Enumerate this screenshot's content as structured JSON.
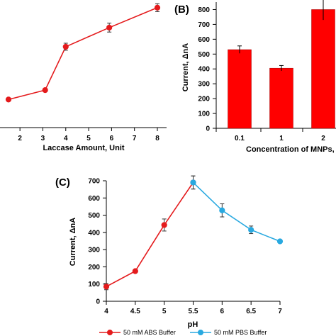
{
  "chart_data": [
    {
      "panel": "A",
      "panel_label": "",
      "type": "line",
      "xlabel": "Laccase Amount, Unit",
      "ylabel": "",
      "xlim": [
        1.5,
        8.3
      ],
      "ylim": [
        0,
        800
      ],
      "xticks": [
        2,
        3,
        4,
        5,
        6,
        7,
        8
      ],
      "color": "#e41a1c",
      "series": [
        {
          "x": [
            1.5,
            3.1,
            4.0,
            5.9,
            8.0
          ],
          "y": [
            176,
            235,
            507,
            627,
            752
          ],
          "err": [
            0,
            10,
            22,
            28,
            25
          ]
        }
      ]
    },
    {
      "panel": "B",
      "panel_label": "(B)",
      "type": "bar",
      "xlabel": "Concentration of MNPs, m",
      "ylabel": "Current, ΔnA",
      "categories": [
        "0.1",
        "1",
        "2"
      ],
      "values": [
        530,
        405,
        800
      ],
      "errors": [
        25,
        18,
        70
      ],
      "ylim": [
        0,
        850
      ],
      "yticks": [
        0,
        100,
        200,
        300,
        400,
        500,
        600,
        700,
        800
      ],
      "color": "#ff0000"
    },
    {
      "panel": "C",
      "panel_label": "(C)",
      "type": "line",
      "xlabel": "pH",
      "ylabel": "Current, ΔnA",
      "xlim": [
        4,
        7
      ],
      "ylim": [
        0,
        700
      ],
      "xticks": [
        "4",
        "4.5",
        "5",
        "5.5",
        "6",
        "6.5",
        "7"
      ],
      "yticks": [
        0,
        100,
        200,
        300,
        400,
        500,
        600,
        700
      ],
      "series": [
        {
          "name": "50 mM ABS Buffer",
          "color": "#e41a1c",
          "x": [
            4.0,
            4.5,
            5.0,
            5.5
          ],
          "y": [
            85,
            175,
            443,
            690
          ],
          "err": [
            18,
            0,
            35,
            38
          ]
        },
        {
          "name": "50 mM PBS Buffer",
          "color": "#29a9e0",
          "x": [
            5.5,
            6.0,
            6.5,
            7.0
          ],
          "y": [
            690,
            528,
            415,
            348
          ],
          "err": [
            38,
            38,
            22,
            0
          ]
        }
      ]
    }
  ],
  "legend": {
    "items": [
      {
        "label": "50 mM ABS Buffer",
        "color": "#e41a1c"
      },
      {
        "label": "50 mM PBS Buffer",
        "color": "#29a9e0"
      }
    ]
  }
}
